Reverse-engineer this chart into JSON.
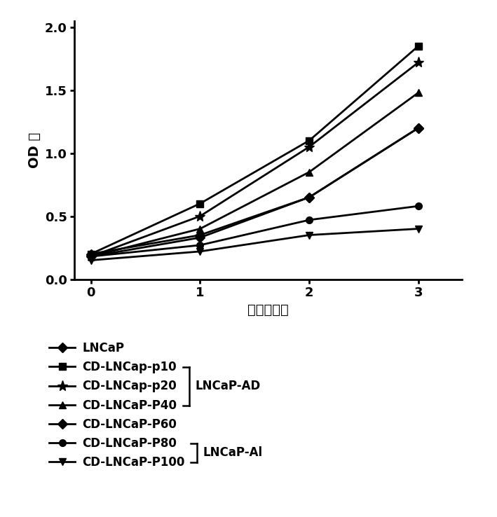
{
  "x": [
    0,
    1,
    2,
    3
  ],
  "series": [
    {
      "label": "LNCaP",
      "values": [
        0.2,
        0.35,
        0.65,
        1.2
      ],
      "marker": "D",
      "color": "#000000",
      "markersize": 7,
      "linewidth": 2.0
    },
    {
      "label": "CD-LNCap-p10",
      "values": [
        0.2,
        0.6,
        1.1,
        1.85
      ],
      "marker": "s",
      "color": "#000000",
      "markersize": 7,
      "linewidth": 2.0
    },
    {
      "label": "CD-LNCap-p20",
      "values": [
        0.18,
        0.5,
        1.05,
        1.72
      ],
      "marker": "*",
      "color": "#000000",
      "markersize": 11,
      "linewidth": 2.0
    },
    {
      "label": "CD-LNCaP-P40",
      "values": [
        0.18,
        0.4,
        0.85,
        1.48
      ],
      "marker": "^",
      "color": "#000000",
      "markersize": 7,
      "linewidth": 2.0
    },
    {
      "label": "CD-LNCaP-P60",
      "values": [
        0.18,
        0.33,
        0.65,
        1.2
      ],
      "marker": "D",
      "color": "#000000",
      "markersize": 7,
      "linewidth": 2.0
    },
    {
      "label": "CD-LNCaP-P80",
      "values": [
        0.18,
        0.27,
        0.47,
        0.58
      ],
      "marker": "o",
      "color": "#000000",
      "markersize": 7,
      "linewidth": 2.0
    },
    {
      "label": "CD-LNCaP-P100",
      "values": [
        0.15,
        0.22,
        0.35,
        0.4
      ],
      "marker": "v",
      "color": "#000000",
      "markersize": 7,
      "linewidth": 2.0
    }
  ],
  "xlabel": "时间（天）",
  "ylabel": "OD 値",
  "xlim": [
    -0.15,
    3.4
  ],
  "ylim": [
    0.0,
    2.05
  ],
  "xticks": [
    0,
    1,
    2,
    3
  ],
  "yticks": [
    0.0,
    0.5,
    1.0,
    1.5,
    2.0
  ],
  "fontsize_axis_label": 14,
  "fontsize_tick": 13,
  "fontsize_legend": 12,
  "background_color": "#ffffff",
  "bracket_ad_indices": [
    1,
    2,
    3
  ],
  "bracket_ai_indices": [
    5,
    6
  ],
  "bracket_ad_label": "LNCaP-AD",
  "bracket_ai_label": "LNCaP-Al"
}
